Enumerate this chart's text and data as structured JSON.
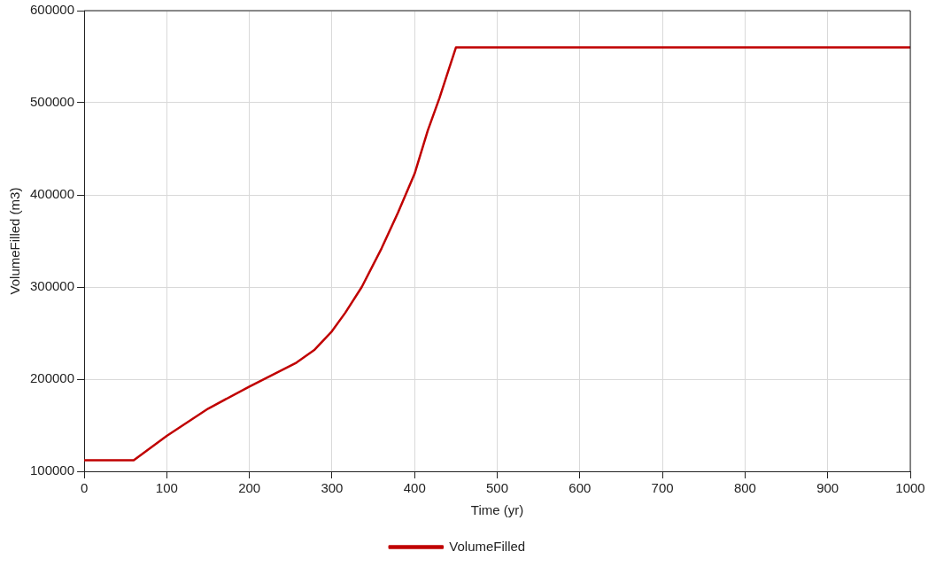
{
  "chart_data": {
    "type": "line",
    "xlabel": "Time (yr)",
    "ylabel": "VolumeFilled (m3)",
    "xlim": [
      0,
      1000
    ],
    "xticks": [
      0,
      100,
      200,
      300,
      400,
      500,
      600,
      700,
      800,
      900,
      1000
    ],
    "ylim": [
      100000,
      600000
    ],
    "yticks": [
      100000,
      200000,
      300000,
      400000,
      500000,
      600000
    ],
    "grid": true,
    "legend": "bottom",
    "marker": "none",
    "line_style": "solid",
    "series": [
      {
        "name": "VolumeFilled",
        "color": "#c00000",
        "x": [
          0,
          60,
          100,
          150,
          200,
          257,
          279,
          299,
          316,
          336,
          360,
          380,
          400,
          416,
          430,
          450,
          1000
        ],
        "values": [
          112000,
          112000,
          138500,
          168000,
          192000,
          218000,
          232000,
          251000,
          272000,
          300000,
          342000,
          381000,
          423000,
          470000,
          505000,
          560000,
          560000
        ]
      }
    ]
  }
}
